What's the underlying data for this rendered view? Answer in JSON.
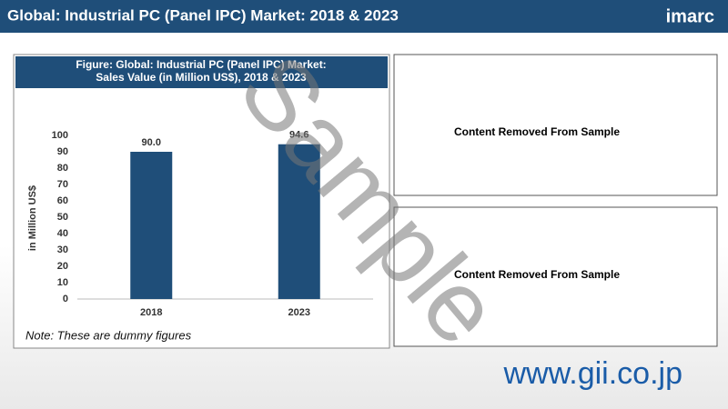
{
  "header": {
    "title": "Global: Industrial PC (Panel IPC) Market: 2018 & 2023",
    "logo": "imarc"
  },
  "chart_data": {
    "type": "bar",
    "title": "Figure: Global: Industrial PC (Panel IPC) Market: Sales Value (in Million US$), 2018 & 2023",
    "y_label": "in Million US$",
    "categories": [
      "2018",
      "2023"
    ],
    "values": [
      90.0,
      94.6
    ],
    "value_labels": [
      "90.0",
      "94.6"
    ],
    "color": "#1f4e79",
    "ylim": [
      0,
      100
    ],
    "yticks": [
      0,
      10,
      20,
      30,
      40,
      50,
      60,
      70,
      80,
      90,
      100
    ],
    "grid": false
  },
  "note": "Note: These are dummy figures",
  "panels": [
    "Content Removed From Sample",
    "Content Removed From Sample"
  ],
  "watermark": "Sample",
  "footer": "www.gii.co.jp"
}
